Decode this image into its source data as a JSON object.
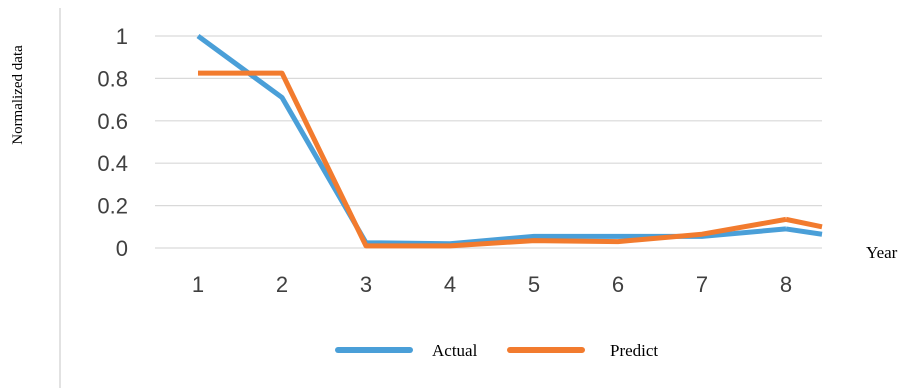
{
  "chart_data": {
    "type": "line",
    "ylabel": "Normalized data",
    "xlabel": "Year",
    "x": [
      1,
      2,
      3,
      4,
      5,
      6,
      7,
      8
    ],
    "ylim": [
      0,
      1
    ],
    "yticks": [
      "0",
      "0.2",
      "0.4",
      "0.6",
      "0.8",
      "1"
    ],
    "xticks": [
      "1",
      "2",
      "3",
      "4",
      "5",
      "6",
      "7",
      "8"
    ],
    "grid": true,
    "legend": "bottom",
    "series": [
      {
        "name": "Actual",
        "color": "#4a9fd8",
        "values": [
          1.0,
          0.71,
          0.025,
          0.02,
          0.055,
          0.055,
          0.055,
          0.09
        ]
      },
      {
        "name": "Predict",
        "color": "#f27b2e",
        "values": [
          0.825,
          0.825,
          0.01,
          0.01,
          0.035,
          0.03,
          0.065,
          0.135
        ]
      }
    ]
  }
}
